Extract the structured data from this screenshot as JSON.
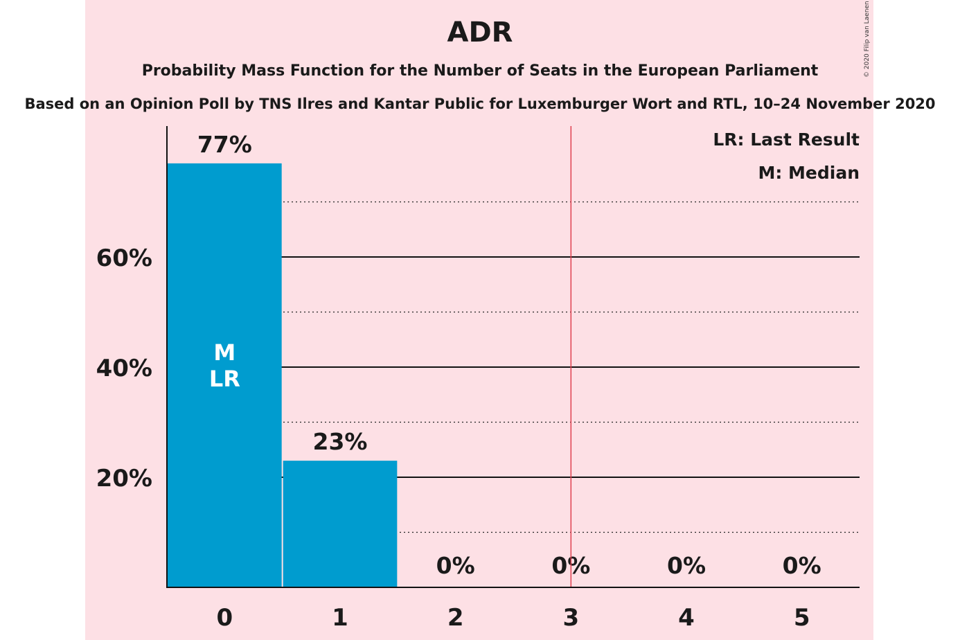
{
  "title": "ADR",
  "subtitle": "Probability Mass Function for the Number of Seats in the European Parliament",
  "subtitle2": "Based on an Opinion Poll by TNS Ilres and Kantar Public for Luxemburger Wort and RTL, 10–24 November 2020",
  "copyright": "© 2020 Filip van Laenen",
  "colors": {
    "bar": "#009ccf",
    "background": "#fde0e5",
    "last_result_line": "#e0404f"
  },
  "chart_data": {
    "type": "bar",
    "categories": [
      "0",
      "1",
      "2",
      "3",
      "4",
      "5"
    ],
    "values": [
      77,
      23,
      0,
      0,
      0,
      0
    ],
    "value_labels": [
      "77%",
      "23%",
      "0%",
      "0%",
      "0%",
      "0%"
    ],
    "ylim": [
      0,
      84
    ],
    "yticks": [
      20,
      40,
      60
    ],
    "ytick_labels": [
      "20%",
      "40%",
      "60%"
    ],
    "minor_gridlines": [
      10,
      30,
      50,
      70
    ],
    "last_result_after_seats": 3.5,
    "bar_annotations": [
      {
        "category": "0",
        "lines": [
          "M",
          "LR"
        ]
      }
    ],
    "legend": [
      "LR: Last Result",
      "M: Median"
    ],
    "legend_position": "top-right",
    "xlabel": "",
    "ylabel": ""
  }
}
